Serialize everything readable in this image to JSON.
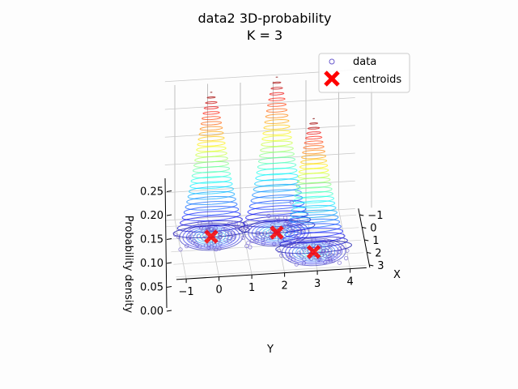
{
  "chart_data": {
    "type": "3d-surface-scatter",
    "title_line1": "data2 3D-probability",
    "title_line2": "K = 3",
    "xlabel": "X",
    "ylabel": "Y",
    "zlabel": "Probability density",
    "x_ticks": [
      "−1",
      "0",
      "1",
      "2",
      "3"
    ],
    "y_ticks": [
      "−1",
      "0",
      "1",
      "2",
      "3",
      "4"
    ],
    "z_ticks": [
      "0.00",
      "0.05",
      "0.10",
      "0.15",
      "0.20",
      "0.25"
    ],
    "xlim": [
      -1.5,
      3.2
    ],
    "ylim": [
      -1.5,
      4.6
    ],
    "zlim": [
      0,
      0.3
    ],
    "legend": {
      "position": "upper right",
      "data_label": "data",
      "centroids_label": "centroids"
    },
    "colors": {
      "data_marker": "#6a5acd",
      "centroid_marker": "#ff0000",
      "colormap": "rainbow"
    },
    "components": [
      {
        "centroid_x": 0.0,
        "centroid_y": 0.0,
        "peak_density": 0.26
      },
      {
        "centroid_x": 0.0,
        "centroid_y": 2.0,
        "peak_density": 0.28
      },
      {
        "centroid_x": 1.7,
        "centroid_y": 3.0,
        "peak_density": 0.24
      }
    ],
    "grid": true
  }
}
